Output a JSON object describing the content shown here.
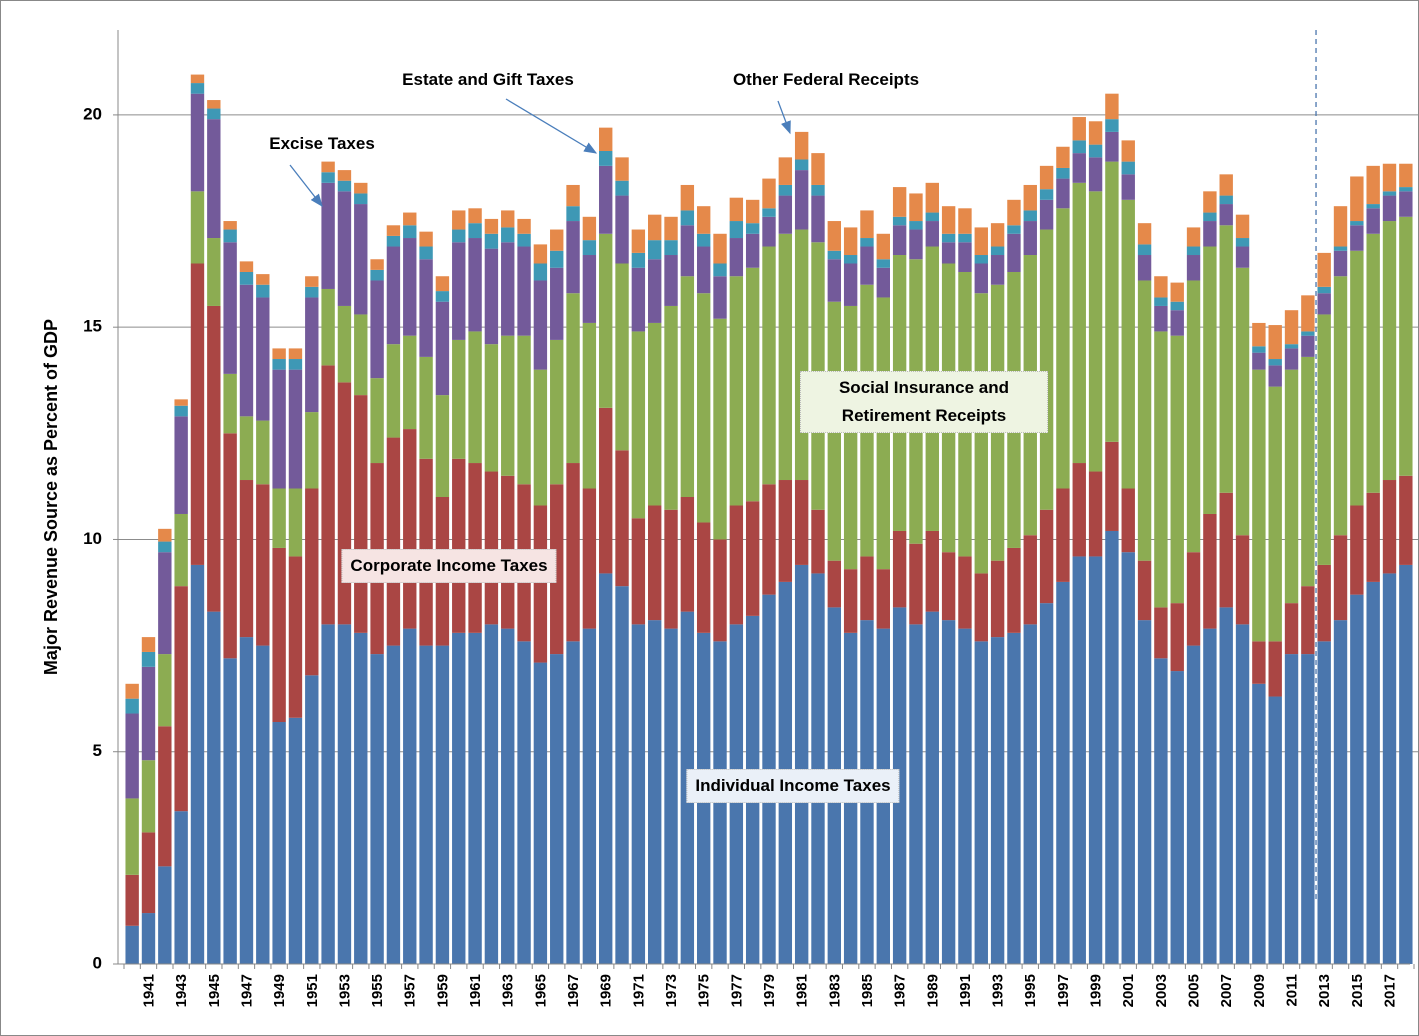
{
  "chart_data": {
    "type": "stacked-bar",
    "y_label": "Major Revenue Source as Percent of GDP",
    "ylim": [
      0,
      22
    ],
    "yticks": [
      0,
      5,
      10,
      15,
      20
    ],
    "grid": true,
    "categories": [
      null,
      "1941",
      null,
      "1943",
      null,
      "1945",
      null,
      "1947",
      null,
      "1949",
      null,
      "1951",
      null,
      "1953",
      null,
      "1955",
      null,
      "1957",
      null,
      "1959",
      null,
      "1961",
      null,
      "1963",
      null,
      "1965",
      null,
      "1967",
      null,
      "1969",
      null,
      "1971",
      null,
      "1973",
      null,
      "1975",
      null,
      "1977",
      null,
      "1979",
      null,
      "1981",
      null,
      "1983",
      null,
      "1985",
      null,
      "1987",
      null,
      "1989",
      null,
      "1991",
      null,
      "1993",
      null,
      "1995",
      null,
      "1997",
      null,
      "1999",
      null,
      "2001",
      null,
      "2003",
      null,
      "2005",
      null,
      "2007",
      null,
      "2009",
      null,
      "2011",
      null,
      "2013",
      null,
      "2015",
      null,
      "2017",
      null
    ],
    "series": [
      {
        "name": "Individual Income Taxes",
        "color": "#4a76ad",
        "values": [
          0.9,
          1.2,
          2.3,
          3.6,
          9.4,
          8.3,
          7.2,
          7.7,
          7.5,
          5.7,
          5.8,
          6.8,
          8.0,
          8.0,
          7.8,
          7.3,
          7.5,
          7.9,
          7.5,
          7.5,
          7.8,
          7.8,
          8.0,
          7.9,
          7.6,
          7.1,
          7.3,
          7.6,
          7.9,
          9.2,
          8.9,
          8.0,
          8.1,
          7.9,
          8.3,
          7.8,
          7.6,
          8.0,
          8.2,
          8.7,
          9.0,
          9.4,
          9.2,
          8.4,
          7.8,
          8.1,
          7.9,
          8.4,
          8.0,
          8.3,
          8.1,
          7.9,
          7.6,
          7.7,
          7.8,
          8.0,
          8.5,
          9.0,
          9.6,
          9.6,
          10.2,
          9.7,
          8.1,
          7.2,
          6.9,
          7.5,
          7.9,
          8.4,
          8.0,
          6.6,
          6.3,
          7.3,
          7.3,
          7.6,
          8.1,
          8.7,
          9.0,
          9.2,
          9.4
        ]
      },
      {
        "name": "Corporate Income Taxes",
        "color": "#aa4644",
        "values": [
          1.2,
          1.9,
          3.3,
          5.3,
          7.1,
          7.2,
          5.3,
          3.7,
          3.8,
          4.1,
          3.8,
          4.4,
          6.1,
          5.7,
          5.6,
          4.5,
          4.9,
          4.7,
          4.4,
          3.5,
          4.1,
          4.0,
          3.6,
          3.6,
          3.7,
          3.7,
          4.0,
          4.2,
          3.3,
          3.9,
          3.2,
          2.5,
          2.7,
          2.8,
          2.7,
          2.6,
          2.4,
          2.8,
          2.7,
          2.6,
          2.4,
          2.0,
          1.5,
          1.1,
          1.5,
          1.5,
          1.4,
          1.8,
          1.9,
          1.9,
          1.6,
          1.7,
          1.6,
          1.8,
          2.0,
          2.1,
          2.2,
          2.2,
          2.2,
          2.0,
          2.1,
          1.5,
          1.4,
          1.2,
          1.6,
          2.2,
          2.7,
          2.7,
          2.1,
          1.0,
          1.3,
          1.2,
          1.6,
          1.8,
          2.0,
          2.1,
          2.1,
          2.2,
          2.1
        ]
      },
      {
        "name": "Social Insurance and Retirement Receipts",
        "color": "#8cac52",
        "values": [
          1.8,
          1.7,
          1.7,
          1.7,
          1.7,
          1.6,
          1.4,
          1.5,
          1.5,
          1.4,
          1.6,
          1.8,
          1.8,
          1.8,
          1.9,
          2.0,
          2.2,
          2.2,
          2.4,
          2.4,
          2.8,
          3.1,
          3.0,
          3.3,
          3.5,
          3.2,
          3.4,
          4.0,
          3.9,
          4.1,
          4.4,
          4.4,
          4.3,
          4.8,
          5.2,
          5.4,
          5.2,
          5.4,
          5.5,
          5.6,
          5.8,
          5.9,
          6.3,
          6.1,
          6.2,
          6.4,
          6.4,
          6.5,
          6.7,
          6.7,
          6.8,
          6.7,
          6.6,
          6.5,
          6.5,
          6.6,
          6.6,
          6.6,
          6.6,
          6.6,
          6.6,
          6.8,
          6.6,
          6.5,
          6.3,
          6.4,
          6.3,
          6.3,
          6.3,
          6.4,
          6.0,
          5.5,
          5.4,
          5.9,
          6.1,
          6.0,
          6.1,
          6.1,
          6.1
        ]
      },
      {
        "name": "Excise Taxes",
        "color": "#735a9a",
        "values": [
          2.0,
          2.2,
          2.4,
          2.3,
          2.3,
          2.8,
          3.1,
          3.1,
          2.9,
          2.8,
          2.8,
          2.7,
          2.5,
          2.7,
          2.6,
          2.3,
          2.3,
          2.3,
          2.3,
          2.2,
          2.3,
          2.2,
          2.25,
          2.2,
          2.1,
          2.1,
          1.7,
          1.7,
          1.6,
          1.6,
          1.6,
          1.5,
          1.5,
          1.2,
          1.2,
          1.1,
          1.0,
          0.9,
          0.8,
          0.7,
          0.9,
          1.4,
          1.1,
          1.0,
          1.0,
          0.9,
          0.7,
          0.7,
          0.7,
          0.6,
          0.5,
          0.7,
          0.7,
          0.7,
          0.9,
          0.8,
          0.7,
          0.7,
          0.7,
          0.8,
          0.7,
          0.6,
          0.6,
          0.6,
          0.6,
          0.6,
          0.6,
          0.5,
          0.5,
          0.4,
          0.5,
          0.5,
          0.5,
          0.5,
          0.6,
          0.6,
          0.6,
          0.6,
          0.6
        ]
      },
      {
        "name": "Estate and Gift Taxes",
        "color": "#3e98b5",
        "values": [
          0.35,
          0.35,
          0.25,
          0.25,
          0.25,
          0.25,
          0.3,
          0.3,
          0.3,
          0.25,
          0.25,
          0.25,
          0.25,
          0.25,
          0.25,
          0.25,
          0.25,
          0.3,
          0.3,
          0.25,
          0.3,
          0.35,
          0.35,
          0.35,
          0.3,
          0.4,
          0.4,
          0.35,
          0.35,
          0.35,
          0.35,
          0.35,
          0.45,
          0.35,
          0.35,
          0.3,
          0.3,
          0.4,
          0.25,
          0.2,
          0.25,
          0.25,
          0.25,
          0.2,
          0.2,
          0.2,
          0.2,
          0.2,
          0.2,
          0.2,
          0.2,
          0.2,
          0.2,
          0.2,
          0.2,
          0.25,
          0.25,
          0.25,
          0.3,
          0.3,
          0.3,
          0.3,
          0.25,
          0.2,
          0.2,
          0.2,
          0.2,
          0.2,
          0.2,
          0.15,
          0.15,
          0.1,
          0.1,
          0.15,
          0.1,
          0.1,
          0.1,
          0.1,
          0.1
        ]
      },
      {
        "name": "Other Federal Receipts",
        "color": "#e5894a",
        "values": [
          0.35,
          0.35,
          0.3,
          0.15,
          0.2,
          0.2,
          0.2,
          0.25,
          0.25,
          0.25,
          0.25,
          0.25,
          0.25,
          0.25,
          0.25,
          0.25,
          0.25,
          0.3,
          0.35,
          0.35,
          0.45,
          0.35,
          0.35,
          0.4,
          0.35,
          0.45,
          0.5,
          0.5,
          0.55,
          0.55,
          0.55,
          0.55,
          0.6,
          0.55,
          0.6,
          0.65,
          0.7,
          0.55,
          0.55,
          0.7,
          0.65,
          0.65,
          0.75,
          0.7,
          0.65,
          0.65,
          0.6,
          0.7,
          0.65,
          0.7,
          0.65,
          0.6,
          0.65,
          0.55,
          0.6,
          0.6,
          0.55,
          0.5,
          0.55,
          0.55,
          0.6,
          0.5,
          0.5,
          0.5,
          0.45,
          0.45,
          0.5,
          0.5,
          0.55,
          0.55,
          0.8,
          0.8,
          0.85,
          0.8,
          0.95,
          1.05,
          0.9,
          0.65,
          0.55
        ]
      }
    ]
  }
}
